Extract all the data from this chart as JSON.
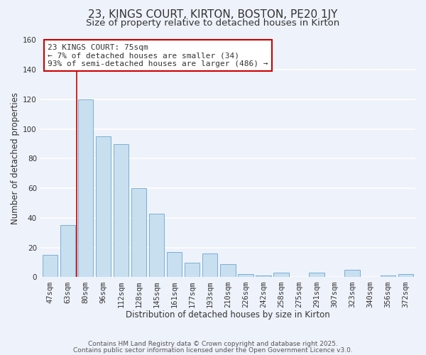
{
  "title": "23, KINGS COURT, KIRTON, BOSTON, PE20 1JY",
  "subtitle": "Size of property relative to detached houses in Kirton",
  "xlabel": "Distribution of detached houses by size in Kirton",
  "ylabel": "Number of detached properties",
  "bar_labels": [
    "47sqm",
    "63sqm",
    "80sqm",
    "96sqm",
    "112sqm",
    "128sqm",
    "145sqm",
    "161sqm",
    "177sqm",
    "193sqm",
    "210sqm",
    "226sqm",
    "242sqm",
    "258sqm",
    "275sqm",
    "291sqm",
    "307sqm",
    "323sqm",
    "340sqm",
    "356sqm",
    "372sqm"
  ],
  "bar_values": [
    15,
    35,
    120,
    95,
    90,
    60,
    43,
    17,
    10,
    16,
    9,
    2,
    1,
    3,
    0,
    3,
    0,
    5,
    0,
    1,
    2
  ],
  "bar_color": "#c8dff0",
  "bar_edge_color": "#7ab0d4",
  "vline_color": "#cc0000",
  "annotation_title": "23 KINGS COURT: 75sqm",
  "annotation_line1": "← 7% of detached houses are smaller (34)",
  "annotation_line2": "93% of semi-detached houses are larger (486) →",
  "ylim": [
    0,
    160
  ],
  "yticks": [
    0,
    20,
    40,
    60,
    80,
    100,
    120,
    140,
    160
  ],
  "footnote1": "Contains HM Land Registry data © Crown copyright and database right 2025.",
  "footnote2": "Contains public sector information licensed under the Open Government Licence v3.0.",
  "bg_color": "#eef2fa",
  "plot_bg_color": "#eef2fa",
  "grid_color": "#ffffff",
  "title_fontsize": 11,
  "subtitle_fontsize": 9.5,
  "axis_label_fontsize": 8.5,
  "tick_fontsize": 7.5,
  "annotation_fontsize": 8,
  "footnote_fontsize": 6.5,
  "vline_x_index": 1.5
}
